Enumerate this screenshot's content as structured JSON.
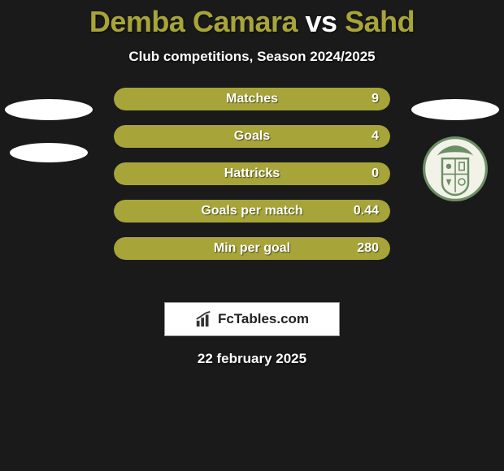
{
  "header": {
    "title_parts": [
      {
        "text": "Demba Camara",
        "color": "#a7a539"
      },
      {
        "text": " vs ",
        "color": "#ffffff"
      },
      {
        "text": "Sahd",
        "color": "#a7a539"
      }
    ],
    "subtitle": "Club competitions, Season 2024/2025"
  },
  "colors": {
    "background": "#1a1a1a",
    "bar_fill": "#a7a539",
    "bar_text": "#ffffff",
    "title_accent": "#a7a539",
    "crest_outer": "#6b8f63",
    "crest_inner": "#f2f2e8"
  },
  "bars": {
    "height": 28,
    "radius": 14,
    "gap": 18,
    "font_size": 16,
    "items": [
      {
        "label": "Matches",
        "value": "9"
      },
      {
        "label": "Goals",
        "value": "4"
      },
      {
        "label": "Hattricks",
        "value": "0"
      },
      {
        "label": "Goals per match",
        "value": "0.44"
      },
      {
        "label": "Min per goal",
        "value": "280"
      }
    ]
  },
  "branding": {
    "site": "FcTables.com"
  },
  "date": "22 february 2025",
  "left_badges": {
    "count": 2
  },
  "right_badges": {
    "ellipse": true,
    "crest": true
  }
}
